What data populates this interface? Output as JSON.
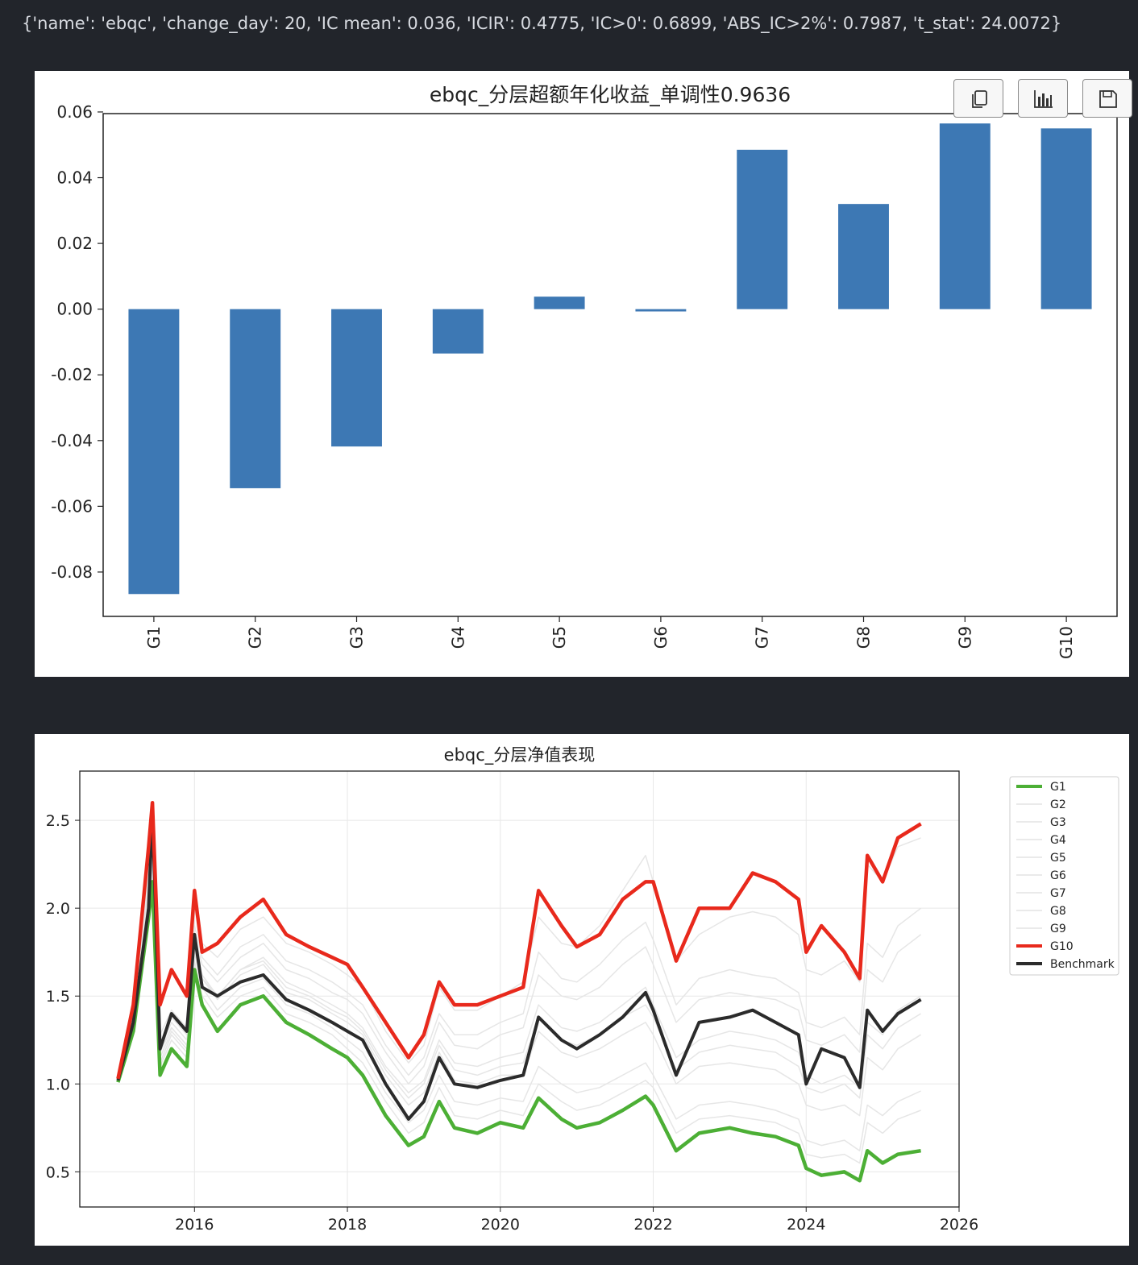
{
  "output_text": "{'name': 'ebqc', 'change_day': 20, 'IC mean': 0.036, 'ICIR': 0.4775, 'IC>0': 0.6899, 'ABS_IC>2%': 0.7987, 't_stat': 24.0072}",
  "toolbar": {
    "icons": [
      "copy-icon",
      "bar-chart-icon",
      "save-icon"
    ]
  },
  "chart_data": [
    {
      "type": "bar",
      "title": "ebqc_分层超额年化收益_单调性0.9636",
      "categories": [
        "G1",
        "G2",
        "G3",
        "G4",
        "G5",
        "G6",
        "G7",
        "G8",
        "G9",
        "G10"
      ],
      "values": [
        -0.0867,
        -0.0545,
        -0.0418,
        -0.0135,
        0.0038,
        -0.0007,
        0.0485,
        0.032,
        0.0565,
        0.055
      ],
      "ylim": [
        -0.0935,
        0.0595
      ],
      "yticks": [
        "0.06",
        "0.04",
        "0.02",
        "0.00",
        "-0.02",
        "-0.04",
        "-0.06",
        "-0.08"
      ],
      "ytick_values": [
        0.06,
        0.04,
        0.02,
        0.0,
        -0.02,
        -0.04,
        -0.06,
        -0.08
      ],
      "color": "#3d78b4",
      "xlabel": "",
      "ylabel": ""
    },
    {
      "type": "line",
      "title": "ebqc_分层净值表现",
      "xlim": [
        2014.5,
        2026.0
      ],
      "ylim": [
        0.3,
        2.78
      ],
      "xticks": [
        "2016",
        "2018",
        "2020",
        "2022",
        "2024",
        "2026"
      ],
      "xtick_values": [
        2016,
        2018,
        2020,
        2022,
        2024,
        2026
      ],
      "yticks": [
        "0.5",
        "1.0",
        "1.5",
        "2.0",
        "2.5"
      ],
      "ytick_values": [
        0.5,
        1.0,
        1.5,
        2.0,
        2.5
      ],
      "grid": true,
      "legend_position": "outside-right",
      "x": [
        2015.0,
        2015.2,
        2015.4,
        2015.45,
        2015.55,
        2015.7,
        2015.9,
        2016.0,
        2016.1,
        2016.3,
        2016.6,
        2016.9,
        2017.2,
        2017.5,
        2017.8,
        2018.0,
        2018.2,
        2018.5,
        2018.8,
        2019.0,
        2019.2,
        2019.4,
        2019.7,
        2020.0,
        2020.3,
        2020.5,
        2020.8,
        2021.0,
        2021.3,
        2021.6,
        2021.9,
        2022.0,
        2022.3,
        2022.6,
        2023.0,
        2023.3,
        2023.6,
        2023.9,
        2024.0,
        2024.2,
        2024.5,
        2024.7,
        2024.8,
        2025.0,
        2025.2,
        2025.5
      ],
      "series": [
        {
          "name": "G1",
          "color": "#4caf35",
          "width": 4.5,
          "values": [
            1.01,
            1.3,
            1.95,
            2.15,
            1.05,
            1.2,
            1.1,
            1.65,
            1.45,
            1.3,
            1.45,
            1.5,
            1.35,
            1.28,
            1.2,
            1.15,
            1.05,
            0.82,
            0.65,
            0.7,
            0.9,
            0.75,
            0.72,
            0.78,
            0.75,
            0.92,
            0.8,
            0.75,
            0.78,
            0.85,
            0.93,
            0.88,
            0.62,
            0.72,
            0.75,
            0.72,
            0.7,
            0.65,
            0.52,
            0.48,
            0.5,
            0.45,
            0.62,
            0.55,
            0.6,
            0.62
          ]
        },
        {
          "name": "G2",
          "color": "#e6e6e6",
          "width": 1.5,
          "values": [
            1.02,
            1.33,
            2.0,
            2.2,
            1.1,
            1.25,
            1.15,
            1.7,
            1.5,
            1.38,
            1.5,
            1.55,
            1.4,
            1.35,
            1.28,
            1.2,
            1.12,
            0.9,
            0.72,
            0.78,
            0.98,
            0.82,
            0.8,
            0.85,
            0.82,
            1.0,
            0.9,
            0.85,
            0.88,
            0.95,
            1.02,
            0.98,
            0.72,
            0.8,
            0.82,
            0.8,
            0.78,
            0.72,
            0.6,
            0.58,
            0.6,
            0.55,
            0.78,
            0.72,
            0.8,
            0.85
          ]
        },
        {
          "name": "G3",
          "color": "#e6e6e6",
          "width": 1.5,
          "values": [
            1.02,
            1.35,
            2.05,
            2.25,
            1.12,
            1.28,
            1.18,
            1.75,
            1.55,
            1.42,
            1.55,
            1.6,
            1.45,
            1.4,
            1.32,
            1.25,
            1.18,
            0.95,
            0.78,
            0.85,
            1.05,
            0.9,
            0.88,
            0.92,
            0.9,
            1.1,
            1.0,
            0.95,
            0.98,
            1.05,
            1.12,
            1.05,
            0.8,
            0.88,
            0.9,
            0.88,
            0.85,
            0.8,
            0.68,
            0.65,
            0.68,
            0.62,
            0.88,
            0.82,
            0.9,
            0.96
          ]
        },
        {
          "name": "G4",
          "color": "#e6e6e6",
          "width": 1.5,
          "values": [
            1.02,
            1.36,
            2.1,
            2.3,
            1.15,
            1.3,
            1.2,
            1.78,
            1.6,
            1.48,
            1.62,
            1.68,
            1.52,
            1.48,
            1.4,
            1.35,
            1.28,
            1.05,
            0.88,
            0.95,
            1.18,
            1.02,
            1.0,
            1.05,
            1.05,
            1.3,
            1.18,
            1.15,
            1.2,
            1.28,
            1.35,
            1.28,
            1.0,
            1.1,
            1.12,
            1.1,
            1.08,
            1.0,
            0.88,
            0.85,
            0.88,
            0.82,
            1.15,
            1.08,
            1.2,
            1.28
          ]
        },
        {
          "name": "G5",
          "color": "#e6e6e6",
          "width": 1.5,
          "values": [
            1.02,
            1.38,
            2.15,
            2.35,
            1.18,
            1.32,
            1.22,
            1.8,
            1.62,
            1.5,
            1.65,
            1.72,
            1.58,
            1.52,
            1.45,
            1.4,
            1.32,
            1.1,
            0.95,
            1.02,
            1.25,
            1.12,
            1.1,
            1.15,
            1.18,
            1.45,
            1.32,
            1.3,
            1.35,
            1.45,
            1.55,
            1.45,
            1.15,
            1.25,
            1.3,
            1.28,
            1.25,
            1.18,
            1.05,
            1.0,
            1.05,
            0.98,
            1.35,
            1.28,
            1.42,
            1.5
          ]
        },
        {
          "name": "G6",
          "color": "#e6e6e6",
          "width": 1.5,
          "values": [
            1.02,
            1.38,
            2.15,
            2.35,
            1.18,
            1.32,
            1.22,
            1.8,
            1.6,
            1.5,
            1.65,
            1.7,
            1.55,
            1.5,
            1.42,
            1.38,
            1.3,
            1.08,
            0.92,
            1.0,
            1.22,
            1.08,
            1.05,
            1.1,
            1.12,
            1.38,
            1.25,
            1.22,
            1.28,
            1.38,
            1.45,
            1.38,
            1.08,
            1.18,
            1.22,
            1.2,
            1.18,
            1.1,
            0.98,
            0.95,
            1.0,
            0.92,
            1.28,
            1.2,
            1.32,
            1.4
          ]
        },
        {
          "name": "G7",
          "color": "#e6e6e6",
          "width": 1.5,
          "values": [
            1.02,
            1.4,
            2.2,
            2.4,
            1.22,
            1.38,
            1.28,
            1.9,
            1.72,
            1.62,
            1.78,
            1.85,
            1.7,
            1.65,
            1.58,
            1.52,
            1.45,
            1.22,
            1.05,
            1.15,
            1.4,
            1.28,
            1.28,
            1.35,
            1.4,
            1.75,
            1.6,
            1.58,
            1.68,
            1.82,
            1.92,
            1.82,
            1.45,
            1.6,
            1.65,
            1.62,
            1.6,
            1.52,
            1.35,
            1.32,
            1.38,
            1.28,
            1.8,
            1.72,
            1.9,
            2.0
          ]
        },
        {
          "name": "G8",
          "color": "#e6e6e6",
          "width": 1.5,
          "values": [
            1.02,
            1.38,
            2.18,
            2.38,
            1.2,
            1.35,
            1.25,
            1.85,
            1.68,
            1.58,
            1.72,
            1.8,
            1.65,
            1.6,
            1.52,
            1.48,
            1.4,
            1.18,
            1.0,
            1.1,
            1.35,
            1.22,
            1.2,
            1.28,
            1.32,
            1.62,
            1.5,
            1.48,
            1.55,
            1.68,
            1.78,
            1.68,
            1.35,
            1.48,
            1.52,
            1.5,
            1.48,
            1.42,
            1.25,
            1.22,
            1.28,
            1.18,
            1.65,
            1.58,
            1.75,
            1.85
          ]
        },
        {
          "name": "G9",
          "color": "#e6e6e6",
          "width": 1.5,
          "values": [
            1.02,
            1.42,
            2.25,
            2.5,
            1.28,
            1.42,
            1.32,
            2.0,
            1.8,
            1.72,
            1.88,
            1.95,
            1.8,
            1.75,
            1.68,
            1.62,
            1.55,
            1.3,
            1.12,
            1.22,
            1.55,
            1.42,
            1.42,
            1.5,
            1.58,
            1.95,
            1.8,
            1.78,
            1.9,
            2.1,
            2.3,
            2.15,
            1.7,
            1.85,
            1.95,
            1.98,
            1.95,
            1.85,
            1.65,
            1.62,
            1.7,
            1.58,
            2.25,
            2.15,
            2.35,
            2.4
          ]
        },
        {
          "name": "G10",
          "color": "#e8291c",
          "width": 4.5,
          "values": [
            1.03,
            1.45,
            2.35,
            2.6,
            1.45,
            1.65,
            1.5,
            2.1,
            1.75,
            1.8,
            1.95,
            2.05,
            1.85,
            1.78,
            1.72,
            1.68,
            1.55,
            1.35,
            1.15,
            1.28,
            1.58,
            1.45,
            1.45,
            1.5,
            1.55,
            2.1,
            1.9,
            1.78,
            1.85,
            2.05,
            2.15,
            2.15,
            1.7,
            2.0,
            2.0,
            2.2,
            2.15,
            2.05,
            1.75,
            1.9,
            1.75,
            1.6,
            2.3,
            2.15,
            2.4,
            2.48
          ]
        },
        {
          "name": "Benchmark",
          "color": "#2b2b2b",
          "width": 4.0,
          "values": [
            1.02,
            1.35,
            2.0,
            2.55,
            1.2,
            1.4,
            1.3,
            1.85,
            1.55,
            1.5,
            1.58,
            1.62,
            1.48,
            1.42,
            1.35,
            1.3,
            1.25,
            1.0,
            0.8,
            0.9,
            1.15,
            1.0,
            0.98,
            1.02,
            1.05,
            1.38,
            1.25,
            1.2,
            1.28,
            1.38,
            1.52,
            1.42,
            1.05,
            1.35,
            1.38,
            1.42,
            1.35,
            1.28,
            1.0,
            1.2,
            1.15,
            0.98,
            1.42,
            1.3,
            1.4,
            1.48
          ]
        }
      ]
    }
  ]
}
